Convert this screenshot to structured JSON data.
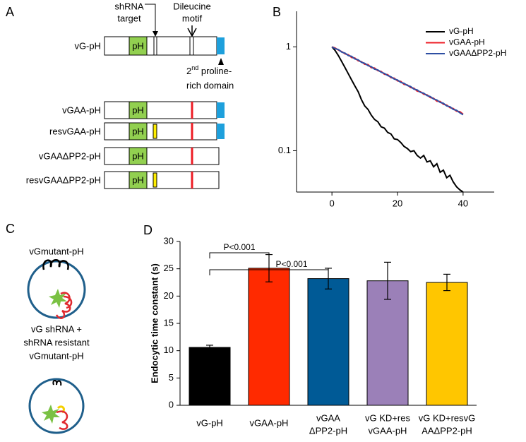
{
  "panel_a": {
    "label": "A",
    "shrna_target": [
      "shRNA",
      "target"
    ],
    "dileucine_motif": [
      "Dileucine",
      "motif"
    ],
    "proline_domain": [
      "2",
      "nd",
      " proline-",
      "rich domain"
    ],
    "constructs": [
      {
        "name": "vG-pH",
        "tag": "pH"
      },
      {
        "name": "vGAA-pH",
        "tag": "pH"
      },
      {
        "name": "resvGAA-pH",
        "tag": "pH"
      },
      {
        "name": "vGAAΔPP2-pH",
        "tag": "pH"
      },
      {
        "name": "resvGAAΔPP2-pH",
        "tag": "pH"
      }
    ]
  },
  "panel_c": {
    "label": "C",
    "top": "vGmutant-pH",
    "bottom": [
      "vG shRNA +",
      "shRNA resistant",
      "vGmutant-pH"
    ]
  },
  "chart_data": [
    {
      "type": "line",
      "panel_label": "B",
      "log_y": true,
      "legend": "upper right",
      "x": [
        0,
        1,
        2,
        3,
        4,
        5,
        6,
        7,
        8,
        9,
        10,
        11,
        12,
        13,
        14,
        15,
        16,
        17,
        18,
        19,
        20,
        21,
        22,
        23,
        24,
        25,
        26,
        27,
        28,
        29,
        30,
        31,
        32,
        33,
        34,
        35,
        36,
        37,
        38,
        39,
        40
      ],
      "series": [
        {
          "name": "vG-pH",
          "color": "#000000",
          "values": [
            1,
            0.92,
            0.82,
            0.72,
            0.63,
            0.55,
            0.48,
            0.42,
            0.37,
            0.31,
            0.27,
            0.25,
            0.22,
            0.2,
            0.19,
            0.17,
            0.165,
            0.15,
            0.145,
            0.13,
            0.128,
            0.12,
            0.11,
            0.105,
            0.098,
            0.1,
            0.09,
            0.085,
            0.09,
            0.078,
            0.08,
            0.07,
            0.075,
            0.062,
            0.065,
            0.055,
            0.058,
            0.05,
            0.045,
            0.042,
            0.04
          ]
        },
        {
          "name": "vGAA-pH",
          "color": "#ee1c25",
          "values": [
            1,
            0.975,
            0.93,
            0.9,
            0.855,
            0.84,
            0.79,
            0.78,
            0.735,
            0.72,
            0.68,
            0.675,
            0.63,
            0.625,
            0.59,
            0.58,
            0.545,
            0.54,
            0.505,
            0.5,
            0.47,
            0.465,
            0.435,
            0.43,
            0.405,
            0.4,
            0.375,
            0.37,
            0.35,
            0.345,
            0.325,
            0.32,
            0.3,
            0.298,
            0.28,
            0.275,
            0.26,
            0.255,
            0.24,
            0.238,
            0.225
          ]
        },
        {
          "name": "vGAAΔPP2-pH",
          "color": "#2e4fa3",
          "values": [
            1,
            0.96,
            0.94,
            0.89,
            0.87,
            0.825,
            0.81,
            0.765,
            0.75,
            0.71,
            0.695,
            0.66,
            0.645,
            0.61,
            0.6,
            0.57,
            0.555,
            0.53,
            0.515,
            0.49,
            0.48,
            0.455,
            0.445,
            0.425,
            0.415,
            0.392,
            0.385,
            0.365,
            0.358,
            0.34,
            0.332,
            0.315,
            0.308,
            0.292,
            0.286,
            0.27,
            0.265,
            0.25,
            0.245,
            0.232,
            0.222
          ]
        }
      ],
      "xlim": [
        -10.8,
        49.5
      ],
      "xticks": [
        0,
        20,
        40
      ],
      "ylim": [
        0.04,
        2.2
      ],
      "yticks": [
        0.1,
        1
      ]
    },
    {
      "type": "bar",
      "panel_label": "D",
      "ylabel": "Endocytic time constant (s)",
      "categories": [
        [
          "vG-pH"
        ],
        [
          "vGAA-pH"
        ],
        [
          "vGAA",
          "ΔPP2-pH"
        ],
        [
          "vG KD+res",
          "vGAA-pH"
        ],
        [
          "vG KD+resvG",
          "AAΔPP2-pH"
        ]
      ],
      "values": [
        10.6,
        25.1,
        23.2,
        22.8,
        22.5
      ],
      "errors": [
        0.4,
        2.5,
        1.9,
        3.4,
        1.5
      ],
      "colors": [
        "#000000",
        "#ff2a00",
        "#005a96",
        "#9b80b8",
        "#ffc600"
      ],
      "ylim": [
        0,
        30
      ],
      "yticks": [
        0,
        5,
        10,
        15,
        20,
        25,
        30
      ],
      "annotations": [
        "P<0.001",
        "P<0.001"
      ]
    }
  ]
}
